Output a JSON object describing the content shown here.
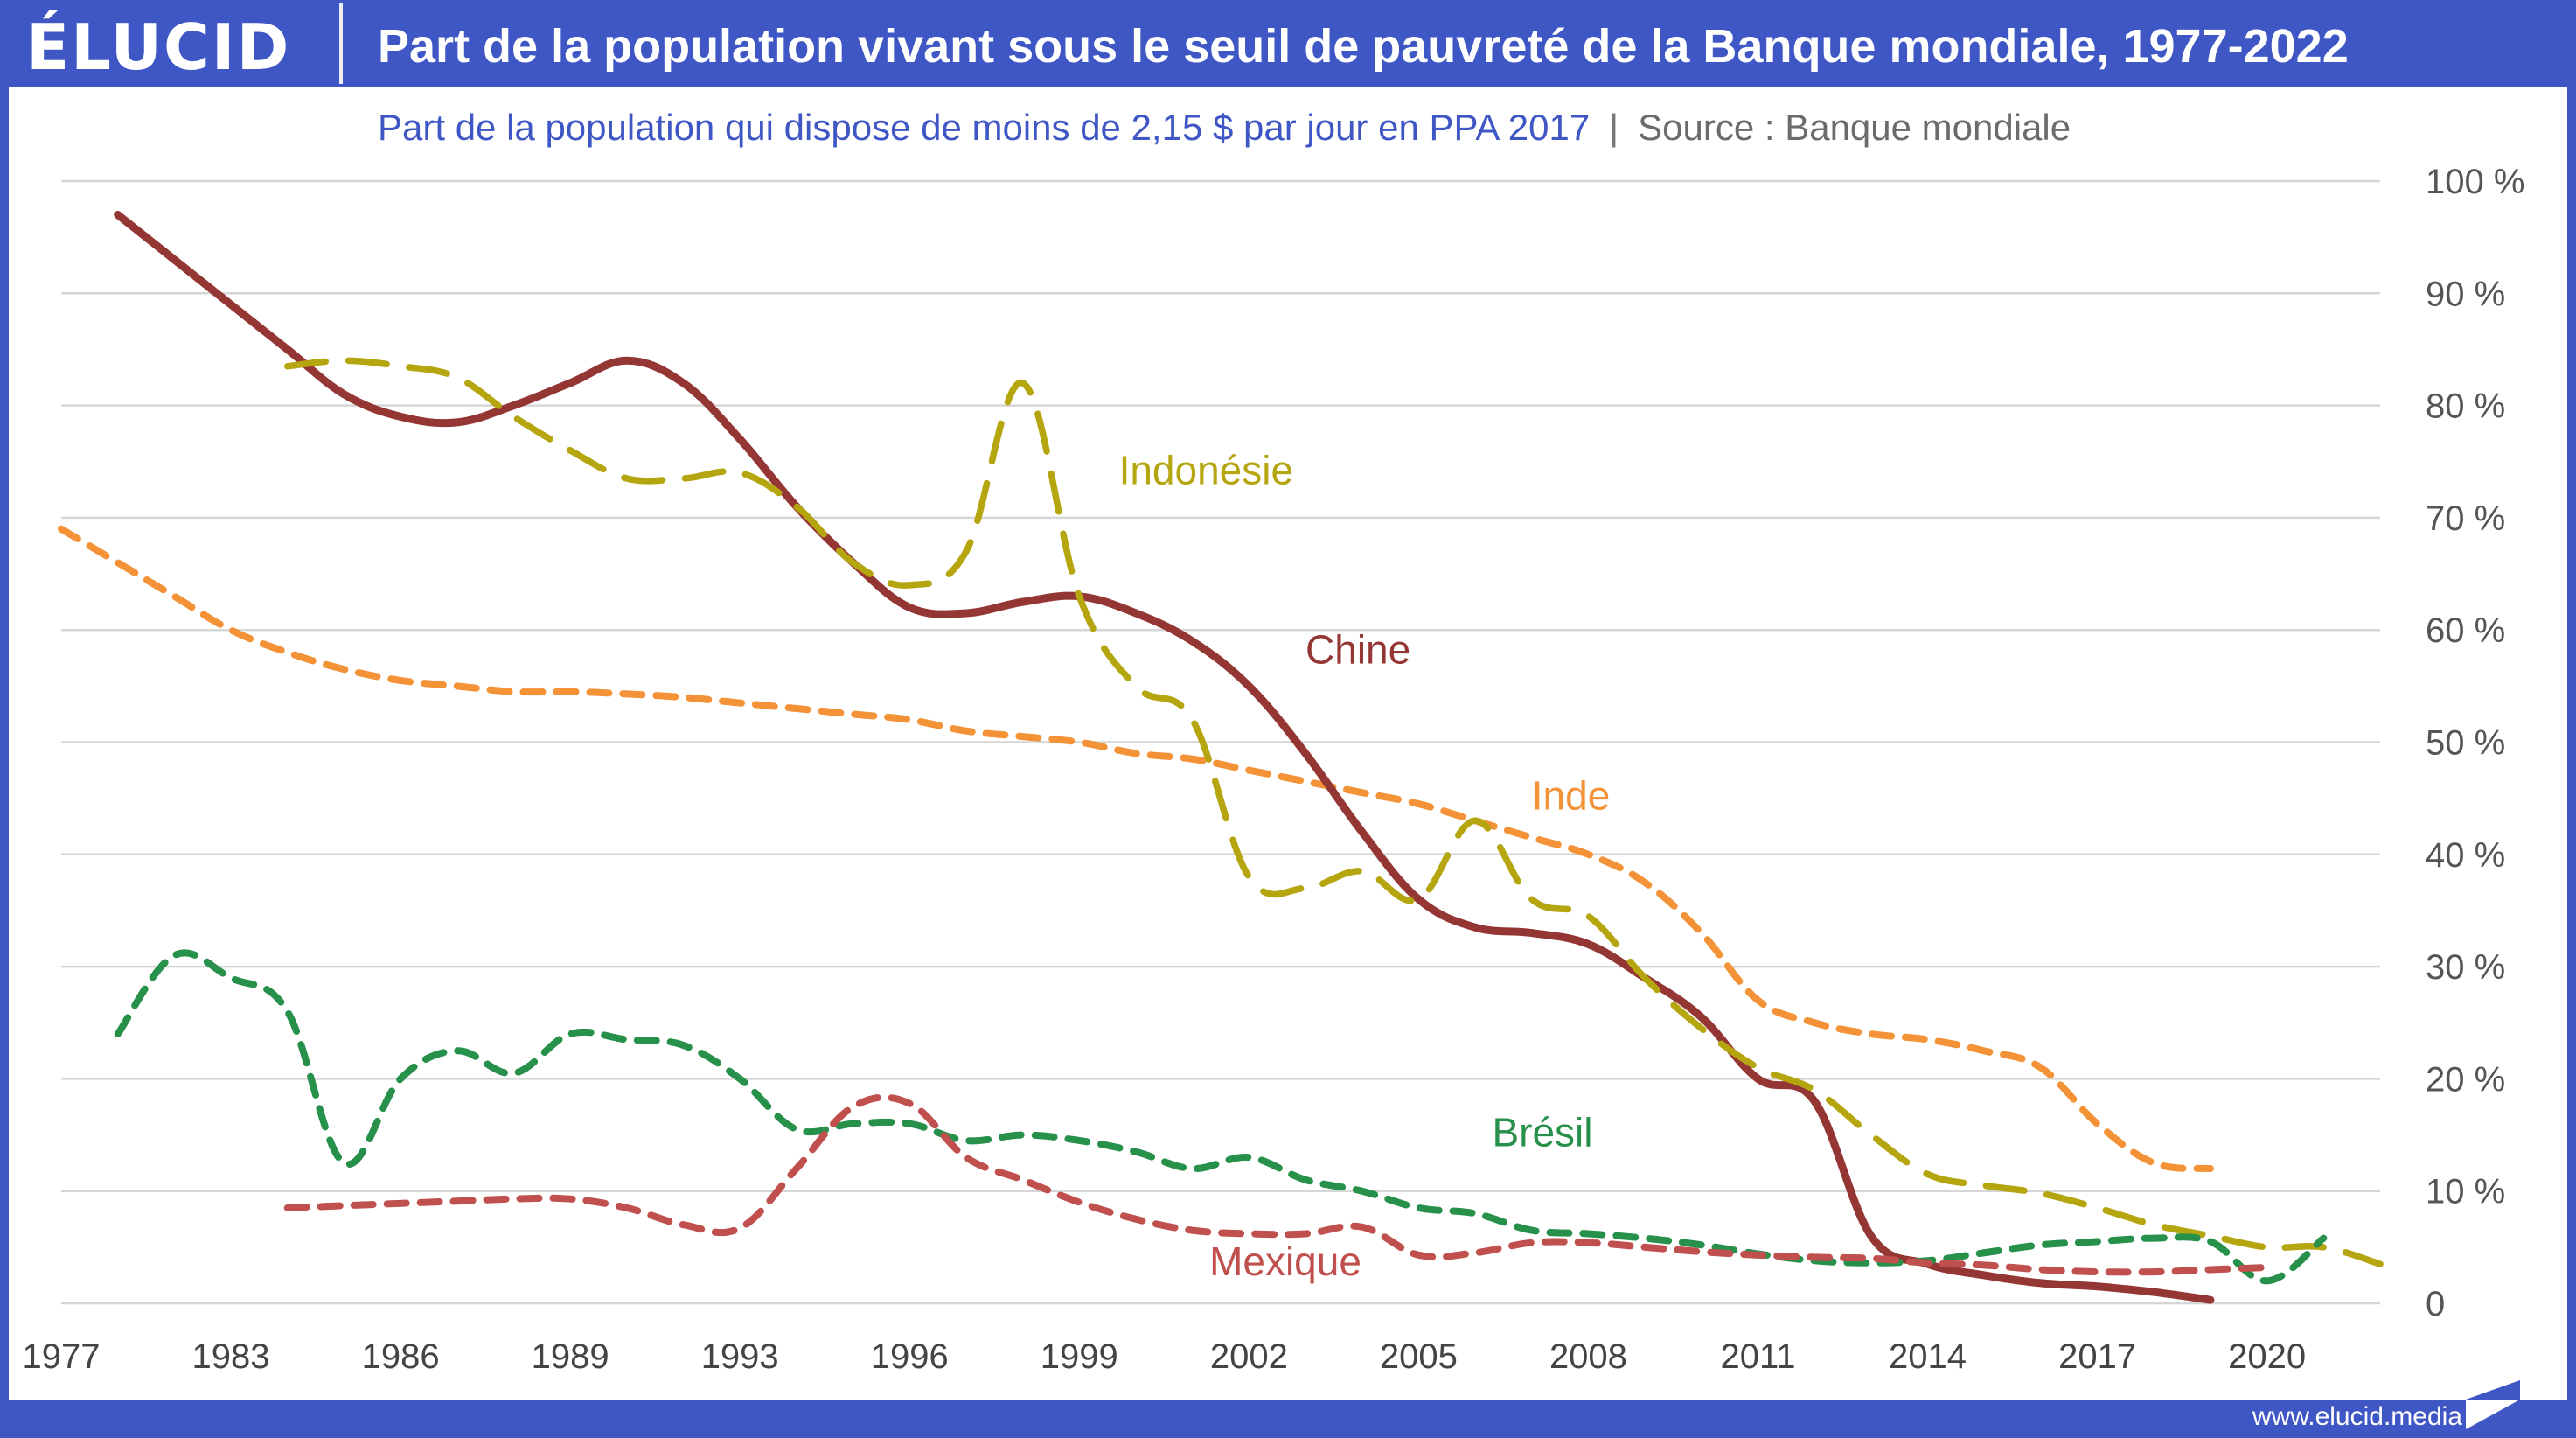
{
  "header": {
    "logo": "ÉLUCID",
    "title": "Part de la population vivant sous le seuil de pauvreté de la Banque mondiale, 1977-2022"
  },
  "subtitle": {
    "main": "Part de la population qui dispose de moins de 2,15 $ par jour en PPA 2017",
    "separator": "|",
    "source": "Source : Banque mondiale"
  },
  "footer": {
    "url": "www.elucid.media"
  },
  "colors": {
    "brand": "#3f57c5",
    "chine": "#943634",
    "indonesie": "#b5a50f",
    "inde": "#f39237",
    "bresil": "#27904a",
    "mexique": "#c0504d",
    "grid": "#d6d6d6"
  },
  "chart_data": {
    "type": "line",
    "title": "Part de la population vivant sous le seuil de pauvreté de la Banque mondiale, 1977-2022",
    "subtitle": "Part de la population qui dispose de moins de 2,15 $ par jour en PPA 2017",
    "xlabel": "",
    "ylabel": "",
    "ylim": [
      0,
      100
    ],
    "y_ticks": [
      0,
      10,
      20,
      30,
      40,
      50,
      60,
      70,
      80,
      90,
      100
    ],
    "y_tick_labels": [
      "0",
      "10 %",
      "20 %",
      "30 %",
      "40 %",
      "50 %",
      "60 %",
      "70 %",
      "80 %",
      "90 %",
      "100 %"
    ],
    "y_axis_position": "right",
    "grid": true,
    "legend": "inline-labels",
    "x": [
      1977,
      1978,
      1981,
      1983,
      1984,
      1985,
      1986,
      1987,
      1988,
      1989,
      1990,
      1992,
      1993,
      1994,
      1995,
      1996,
      1997,
      1998,
      1999,
      2000,
      2001,
      2002,
      2003,
      2004,
      2005,
      2006,
      2007,
      2008,
      2009,
      2010,
      2011,
      2012,
      2013,
      2014,
      2015,
      2016,
      2017,
      2018,
      2019,
      2020,
      2021,
      2022
    ],
    "x_tick_labels": [
      "1977",
      "1983",
      "1986",
      "1989",
      "1993",
      "1996",
      "1999",
      "2002",
      "2005",
      "2008",
      "2011",
      "2014",
      "2017",
      "2020"
    ],
    "series": [
      {
        "name": "Inde",
        "key": "inde",
        "style": "dashed-short",
        "label_at": 2007,
        "label_value": 44,
        "values": [
          69,
          66,
          63,
          60,
          58,
          56.5,
          55.5,
          55,
          54.5,
          54.5,
          54.3,
          54,
          53.5,
          53,
          52.5,
          52,
          51,
          50.5,
          50,
          49,
          48.5,
          47.5,
          46.5,
          45.5,
          44.5,
          43,
          41.5,
          40,
          37.5,
          33,
          27,
          25,
          24,
          23.5,
          22.5,
          21,
          16,
          12.5,
          12,
          null,
          null,
          null
        ]
      },
      {
        "name": "Chine",
        "key": "chine",
        "style": "solid",
        "label_at": 2003,
        "label_value": 57,
        "values": [
          null,
          97,
          93,
          89,
          85,
          81,
          79,
          78.5,
          80,
          82,
          84,
          82,
          77,
          71,
          66,
          62,
          61.5,
          62.5,
          63,
          61.5,
          59,
          55,
          49,
          42,
          36,
          33.5,
          33,
          32,
          29,
          25.5,
          20,
          18,
          6,
          3.5,
          2.5,
          1.8,
          1.5,
          1,
          0.3,
          null,
          null,
          null
        ]
      },
      {
        "name": "Indonésie",
        "key": "indonesie",
        "style": "dashed-long",
        "label_at": 1999.7,
        "label_value": 73,
        "values": [
          null,
          null,
          null,
          null,
          83.5,
          84,
          83.5,
          82.5,
          79,
          76,
          73.5,
          73.5,
          74,
          71,
          66,
          64,
          67,
          82,
          63,
          55,
          52,
          38,
          37,
          38.5,
          36,
          43,
          36,
          34.5,
          29,
          24.5,
          21,
          19,
          15,
          11.5,
          10.5,
          9.8,
          8.5,
          7,
          6,
          5,
          5,
          3.5
        ]
      },
      {
        "name": "Brésil",
        "key": "bresil",
        "style": "dashed-short",
        "label_at": 2006.3,
        "label_value": 14,
        "values": [
          null,
          24,
          31,
          29,
          26,
          12.5,
          20,
          22.5,
          20.5,
          24,
          23.5,
          23,
          20,
          15.5,
          16,
          16,
          14.5,
          15,
          14.5,
          13.5,
          12,
          13,
          11,
          10,
          8.5,
          8,
          6.5,
          6.2,
          5.8,
          5.2,
          4.4,
          3.8,
          3.6,
          3.8,
          4.5,
          5.2,
          5.5,
          5.8,
          5.5,
          2,
          5.8,
          null
        ]
      },
      {
        "name": "Mexique",
        "key": "mexique",
        "style": "dashed-short",
        "label_at": 2001.3,
        "label_value": 2.5,
        "values": [
          null,
          null,
          null,
          null,
          8.5,
          8.7,
          8.9,
          9.1,
          9.3,
          9.3,
          8.5,
          7,
          6.7,
          12,
          17.5,
          17.8,
          13,
          11,
          9,
          7.5,
          6.5,
          6.2,
          6.2,
          6.8,
          4.3,
          4.5,
          5.4,
          5.4,
          5,
          4.6,
          4.3,
          4.1,
          4,
          3.6,
          3.4,
          3,
          2.8,
          2.8,
          3,
          3.2,
          null,
          null
        ]
      }
    ]
  }
}
